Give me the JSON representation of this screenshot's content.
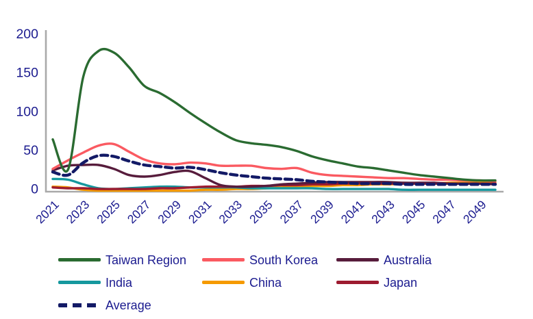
{
  "background": "#FFFFFF",
  "axis_color": "#A9A9A9",
  "label_color": "#1B1B8F",
  "chart_data": {
    "type": "line",
    "title": "",
    "xlabel": "",
    "ylabel": "",
    "grid": false,
    "legend_position": "bottom",
    "x": [
      2021,
      2022,
      2023,
      2024,
      2025,
      2026,
      2027,
      2028,
      2029,
      2030,
      2031,
      2032,
      2033,
      2034,
      2035,
      2036,
      2037,
      2038,
      2039,
      2040,
      2041,
      2042,
      2043,
      2044,
      2045,
      2046,
      2047,
      2048,
      2049,
      2050
    ],
    "x_tick_labels": [
      "2021",
      "2023",
      "2025",
      "2027",
      "2029",
      "2031",
      "2033",
      "2035",
      "2037",
      "2039",
      "2041",
      "2043",
      "2045",
      "2047",
      "2049"
    ],
    "y_ticks": [
      0,
      50,
      100,
      150,
      200
    ],
    "ylim": [
      0,
      200
    ],
    "series": [
      {
        "name": "Taiwan Region",
        "color": "#2A6B31",
        "dashed": false,
        "values": [
          67,
          28,
          148,
          181,
          179,
          160,
          136,
          127,
          115,
          101,
          88,
          76,
          66,
          62,
          60,
          57,
          52,
          45,
          40,
          36,
          32,
          30,
          27,
          24,
          21,
          19,
          17,
          15,
          14,
          14
        ]
      },
      {
        "name": "South Korea",
        "color": "#FA5A61",
        "dashed": false,
        "values": [
          29,
          40,
          50,
          59,
          61,
          51,
          41,
          36,
          35,
          37,
          36,
          33,
          33,
          33,
          30,
          29,
          30,
          24,
          21,
          20,
          19,
          18,
          17,
          17,
          16,
          15,
          15,
          14,
          14,
          13
        ]
      },
      {
        "name": "Australia",
        "color": "#571C3C",
        "dashed": false,
        "values": [
          27,
          33,
          34,
          34,
          29,
          21,
          19,
          21,
          25,
          26,
          17,
          8,
          6,
          6,
          7,
          9,
          10,
          11,
          12,
          12,
          12,
          12,
          12,
          11,
          11,
          11,
          10,
          10,
          10,
          9
        ]
      },
      {
        "name": "India",
        "color": "#15989E",
        "dashed": false,
        "values": [
          16,
          15,
          9,
          4,
          3,
          4,
          5,
          6,
          6,
          5,
          5,
          5,
          5,
          4,
          4,
          4,
          4,
          4,
          3,
          3,
          3,
          3,
          3,
          2,
          2,
          2,
          2,
          2,
          2,
          2
        ]
      },
      {
        "name": "China",
        "color": "#F59A00",
        "dashed": false,
        "values": [
          6,
          5,
          2,
          1,
          1,
          1,
          1,
          1,
          1,
          1,
          2,
          2,
          3,
          3,
          4,
          5,
          6,
          7,
          7,
          8,
          8,
          9,
          9,
          10,
          10,
          10,
          11,
          11,
          11,
          11
        ]
      },
      {
        "name": "Japan",
        "color": "#9D1B30",
        "dashed": false,
        "values": [
          5,
          4,
          4,
          3,
          3,
          3,
          3,
          4,
          4,
          5,
          6,
          6,
          6,
          7,
          7,
          8,
          8,
          9,
          9,
          10,
          10,
          10,
          10,
          10,
          10,
          10,
          10,
          10,
          10,
          10
        ]
      },
      {
        "name": "Average",
        "color": "#131A66",
        "dashed": true,
        "values": [
          25,
          21,
          37,
          46,
          45,
          39,
          34,
          32,
          30,
          31,
          28,
          24,
          21,
          19,
          17,
          16,
          15,
          13,
          12,
          11,
          10,
          10,
          10,
          9,
          9,
          9,
          9,
          9,
          9,
          9
        ]
      }
    ],
    "legend_rows": [
      [
        0,
        1,
        2
      ],
      [
        3,
        4,
        5
      ],
      [
        6
      ]
    ]
  }
}
